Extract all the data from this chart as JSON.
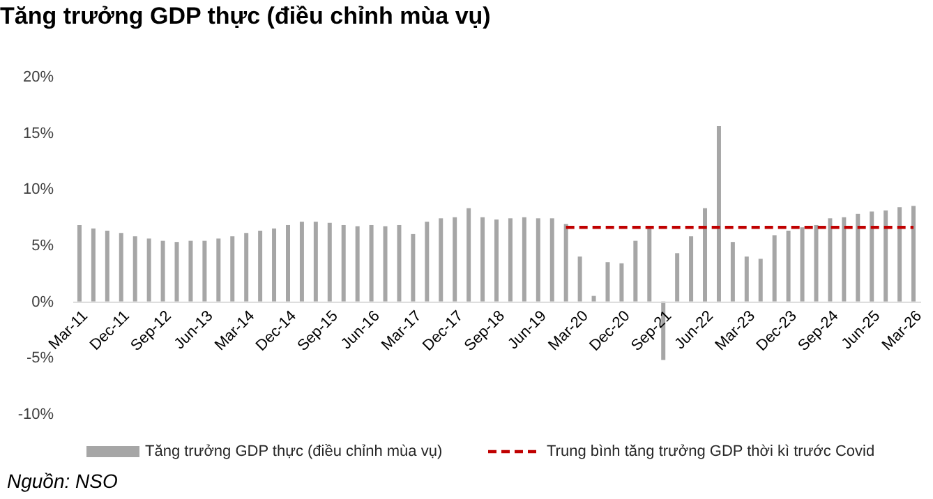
{
  "chart_data": {
    "type": "bar",
    "title": "Tăng trưởng GDP thực (điều chỉnh mùa vụ)",
    "categories": [
      "Mar-11",
      null,
      null,
      "Dec-11",
      null,
      null,
      "Sep-12",
      null,
      null,
      "Jun-13",
      null,
      null,
      "Mar-14",
      null,
      null,
      "Dec-14",
      null,
      null,
      "Sep-15",
      null,
      null,
      "Jun-16",
      null,
      null,
      "Mar-17",
      null,
      null,
      "Dec-17",
      null,
      null,
      "Sep-18",
      null,
      null,
      "Jun-19",
      null,
      null,
      "Mar-20",
      null,
      null,
      "Dec-20",
      null,
      null,
      "Sep-21",
      null,
      null,
      "Jun-22",
      null,
      null,
      "Mar-23",
      null,
      null,
      "Dec-23",
      null,
      null,
      "Sep-24",
      null,
      null,
      "Jun-25",
      null,
      null,
      "Mar-26"
    ],
    "series": [
      {
        "name": "Tăng trưởng GDP thực (điều chỉnh mùa vụ)",
        "color": "#a6a6a6",
        "values": [
          6.8,
          6.5,
          6.3,
          6.1,
          5.8,
          5.6,
          5.4,
          5.3,
          5.4,
          5.4,
          5.6,
          5.8,
          6.1,
          6.3,
          6.5,
          6.8,
          7.1,
          7.1,
          7.0,
          6.8,
          6.7,
          6.8,
          6.7,
          6.8,
          6.0,
          7.1,
          7.4,
          7.5,
          8.3,
          7.5,
          7.3,
          7.4,
          7.5,
          7.4,
          7.4,
          6.9,
          4.0,
          0.5,
          3.5,
          3.4,
          5.4,
          6.5,
          -5.2,
          4.3,
          5.8,
          8.3,
          15.6,
          5.3,
          4.0,
          3.8,
          5.9,
          6.3,
          6.6,
          6.8,
          7.4,
          7.5,
          7.8,
          8.0,
          8.1,
          8.4,
          8.5
        ]
      },
      {
        "name": "Trung bình tăng trưởng GDP thời kì trước Covid",
        "type": "line",
        "color": "#c00000",
        "line_style": "dashed",
        "values": [
          null,
          null,
          null,
          null,
          null,
          null,
          null,
          null,
          null,
          null,
          null,
          null,
          null,
          null,
          null,
          null,
          null,
          null,
          null,
          null,
          null,
          null,
          null,
          null,
          null,
          null,
          null,
          null,
          null,
          null,
          null,
          null,
          null,
          null,
          null,
          6.6,
          6.6,
          6.6,
          6.6,
          6.6,
          6.6,
          6.6,
          6.6,
          6.6,
          6.6,
          6.6,
          6.6,
          6.6,
          6.6,
          6.6,
          6.6,
          6.6,
          6.6,
          6.6,
          6.6,
          6.6,
          6.6,
          6.6,
          6.6,
          6.6,
          6.6
        ]
      }
    ],
    "ylim": [
      -10,
      20
    ],
    "yticks": [
      {
        "value": -10,
        "label": "-10%"
      },
      {
        "value": -5,
        "label": "-5%"
      },
      {
        "value": 0,
        "label": "0%"
      },
      {
        "value": 5,
        "label": "5%"
      },
      {
        "value": 10,
        "label": "10%"
      },
      {
        "value": 15,
        "label": "15%"
      },
      {
        "value": 20,
        "label": "20%"
      }
    ],
    "legend": "bottom",
    "annotations": [
      "Nguồn: NSO"
    ]
  }
}
